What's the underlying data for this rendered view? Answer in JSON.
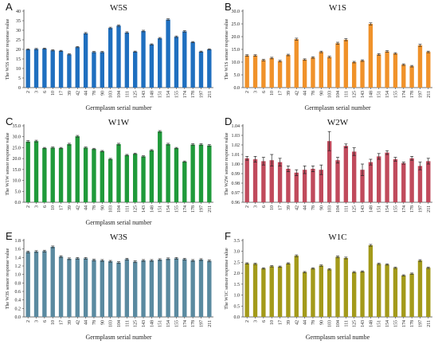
{
  "figure": {
    "categories": [
      "2",
      "3",
      "6",
      "10",
      "17",
      "39",
      "42",
      "44",
      "78",
      "90",
      "103",
      "104",
      "111",
      "125",
      "143",
      "148",
      "151",
      "154",
      "155",
      "174",
      "178",
      "197",
      "211"
    ]
  },
  "chart_data": [
    {
      "type": "bar",
      "panel_letter": "A",
      "title": "W5S",
      "ylabel": "The W5S sensor response value",
      "xlabel": "Germplasm serial number",
      "ylim": [
        0,
        40
      ],
      "yticks": [
        "0",
        "5",
        "10",
        "15",
        "20",
        "25",
        "30",
        "35",
        "40"
      ],
      "yticks_values": [
        0,
        5,
        10,
        15,
        20,
        25,
        30,
        35,
        40
      ],
      "categories": [
        "2",
        "3",
        "6",
        "10",
        "17",
        "39",
        "42",
        "44",
        "78",
        "90",
        "103",
        "104",
        "111",
        "125",
        "143",
        "148",
        "151",
        "154",
        "155",
        "174",
        "178",
        "197",
        "211"
      ],
      "values": [
        20.0,
        20.2,
        20.4,
        19.5,
        19.2,
        17.4,
        21.2,
        28.4,
        18.6,
        18.6,
        31.2,
        32.4,
        28.8,
        18.8,
        29.6,
        22.6,
        25.8,
        35.6,
        26.6,
        29.4,
        23.8,
        18.8,
        20.0
      ],
      "errors": [
        0.3,
        0.3,
        0.3,
        0.3,
        0.3,
        0.3,
        0.3,
        0.4,
        0.3,
        0.3,
        0.4,
        0.4,
        0.4,
        0.3,
        0.4,
        0.3,
        0.4,
        0.4,
        0.4,
        0.4,
        0.3,
        0.3,
        0.3
      ],
      "color": "#1f6fbf",
      "grid": false
    },
    {
      "type": "bar",
      "panel_letter": "B",
      "title": "W1S",
      "ylabel": "The W1S sensor response value",
      "xlabel": "Germplasm serial number",
      "ylim": [
        0,
        30
      ],
      "yticks": [
        "0.0",
        "5.0",
        "10.0",
        "15.0",
        "20.0",
        "25.0",
        "30.0"
      ],
      "yticks_values": [
        0,
        5,
        10,
        15,
        20,
        25,
        30
      ],
      "categories": [
        "2",
        "3",
        "6",
        "10",
        "17",
        "39",
        "42",
        "44",
        "78",
        "90",
        "103",
        "104",
        "111",
        "125",
        "143",
        "148",
        "151",
        "154",
        "155",
        "174",
        "178",
        "197",
        "211"
      ],
      "values": [
        12.6,
        12.6,
        10.8,
        11.6,
        10.4,
        12.8,
        19.0,
        11.0,
        11.8,
        14.0,
        12.0,
        17.4,
        18.8,
        10.0,
        10.6,
        25.0,
        13.0,
        14.2,
        13.4,
        9.0,
        8.4,
        16.6,
        14.0
      ],
      "errors": [
        0.3,
        0.3,
        0.3,
        0.3,
        0.3,
        0.3,
        0.4,
        0.3,
        0.3,
        0.3,
        0.3,
        0.4,
        0.4,
        0.3,
        0.3,
        0.4,
        0.3,
        0.3,
        0.3,
        0.3,
        0.3,
        0.4,
        0.3
      ],
      "color": "#f0922a",
      "grid": false
    },
    {
      "type": "bar",
      "panel_letter": "C",
      "title": "W1W",
      "ylabel": "The W1W sensor response value",
      "xlabel": "Germplasm serial number",
      "ylim": [
        0,
        35
      ],
      "yticks": [
        "0.0",
        "5.0",
        "10.0",
        "15.0",
        "20.0",
        "25.0",
        "30.0",
        "35.0"
      ],
      "yticks_values": [
        0,
        5,
        10,
        15,
        20,
        25,
        30,
        35
      ],
      "categories": [
        "2",
        "3",
        "6",
        "10",
        "17",
        "39",
        "42",
        "44",
        "78",
        "90",
        "103",
        "104",
        "111",
        "125",
        "143",
        "148",
        "151",
        "154",
        "155",
        "174",
        "178",
        "197",
        "211"
      ],
      "values": [
        27.8,
        28.0,
        24.8,
        25.0,
        24.8,
        26.6,
        30.2,
        25.0,
        24.4,
        23.4,
        19.8,
        26.6,
        21.6,
        22.2,
        21.0,
        23.8,
        32.4,
        26.6,
        24.8,
        18.6,
        26.4,
        26.4,
        26.0
      ],
      "errors": [
        0.4,
        0.4,
        0.3,
        0.3,
        0.3,
        0.4,
        0.4,
        0.3,
        0.3,
        0.3,
        0.3,
        0.4,
        0.3,
        0.3,
        0.3,
        0.3,
        0.4,
        0.4,
        0.3,
        0.3,
        0.4,
        0.4,
        0.4
      ],
      "color": "#1f9a3a",
      "grid": false
    },
    {
      "type": "bar",
      "panel_letter": "D",
      "title": "W2W",
      "ylabel": "The W2W sensor response value",
      "xlabel": "",
      "ylim": [
        0.96,
        1.04
      ],
      "yticks": [
        "0.96",
        "0.97",
        "0.98",
        "0.99",
        "1.00",
        "1.01",
        "1.02",
        "1.03",
        "1.04"
      ],
      "yticks_values": [
        0.96,
        0.97,
        0.98,
        0.99,
        1.0,
        1.01,
        1.02,
        1.03,
        1.04
      ],
      "categories": [
        "2",
        "3",
        "6",
        "10",
        "17",
        "39",
        "42",
        "44",
        "78",
        "90",
        "103",
        "104",
        "111",
        "125",
        "143",
        "148",
        "151",
        "154",
        "155",
        "174",
        "178",
        "197",
        "211"
      ],
      "values": [
        1.006,
        1.005,
        1.003,
        1.004,
        1.002,
        0.995,
        0.991,
        0.994,
        0.995,
        0.994,
        1.024,
        1.004,
        1.019,
        1.013,
        0.994,
        1.002,
        1.008,
        1.012,
        1.005,
        1.001,
        1.006,
        0.998,
        1.003
      ],
      "errors": [
        0.002,
        0.003,
        0.004,
        0.006,
        0.004,
        0.003,
        0.003,
        0.004,
        0.003,
        0.005,
        0.01,
        0.003,
        0.002,
        0.004,
        0.006,
        0.003,
        0.003,
        0.002,
        0.002,
        0.001,
        0.002,
        0.004,
        0.003
      ],
      "color": "#c04a5c",
      "error_color": "#222222",
      "grid": false
    },
    {
      "type": "bar",
      "panel_letter": "E",
      "title": "W3S",
      "ylabel": "The W3S sensor response value",
      "xlabel": "Germplasm serial number",
      "ylim": [
        0,
        1.8
      ],
      "yticks": [
        "0.0",
        "0.2",
        "0.4",
        "0.6",
        "0.8",
        "1.0",
        "1.2",
        "1.4",
        "1.6",
        "1.8"
      ],
      "yticks_values": [
        0,
        0.2,
        0.4,
        0.6,
        0.8,
        1.0,
        1.2,
        1.4,
        1.6,
        1.8
      ],
      "categories": [
        "2",
        "3",
        "6",
        "10",
        "17",
        "39",
        "42",
        "44",
        "78",
        "90",
        "103",
        "104",
        "111",
        "125",
        "143",
        "148",
        "151",
        "154",
        "155",
        "174",
        "178",
        "197",
        "211"
      ],
      "values": [
        1.53,
        1.54,
        1.55,
        1.65,
        1.42,
        1.37,
        1.38,
        1.38,
        1.34,
        1.33,
        1.31,
        1.28,
        1.36,
        1.3,
        1.33,
        1.33,
        1.35,
        1.37,
        1.38,
        1.36,
        1.33,
        1.35,
        1.32
      ],
      "errors": [
        0.02,
        0.02,
        0.02,
        0.02,
        0.02,
        0.02,
        0.02,
        0.02,
        0.02,
        0.02,
        0.02,
        0.02,
        0.02,
        0.02,
        0.02,
        0.02,
        0.02,
        0.02,
        0.02,
        0.02,
        0.02,
        0.02,
        0.02
      ],
      "color": "#5a8aa0",
      "grid": false
    },
    {
      "type": "bar",
      "panel_letter": "F",
      "title": "W1C",
      "ylabel": "The W1C sensor response value",
      "xlabel": "Germplasm serial numbe",
      "ylim": [
        0,
        3.5
      ],
      "yticks": [
        "0.0",
        "0.5",
        "1.0",
        "1.5",
        "2.0",
        "2.5",
        "3.0",
        "3.5"
      ],
      "yticks_values": [
        0,
        0.5,
        1.0,
        1.5,
        2.0,
        2.5,
        3.0,
        3.5
      ],
      "categories": [
        "2",
        "3",
        "6",
        "10",
        "17",
        "39",
        "42",
        "44",
        "78",
        "90",
        "103",
        "104",
        "111",
        "125",
        "143",
        "148",
        "151",
        "154",
        "155",
        "174",
        "178",
        "197",
        "211"
      ],
      "values": [
        2.45,
        2.43,
        2.22,
        2.32,
        2.3,
        2.45,
        2.8,
        2.05,
        2.22,
        2.35,
        2.18,
        2.75,
        2.7,
        2.05,
        2.08,
        3.28,
        2.43,
        2.4,
        2.25,
        1.9,
        1.98,
        2.58,
        2.25
      ],
      "errors": [
        0.03,
        0.03,
        0.03,
        0.03,
        0.03,
        0.03,
        0.04,
        0.03,
        0.03,
        0.03,
        0.03,
        0.04,
        0.04,
        0.03,
        0.03,
        0.04,
        0.03,
        0.03,
        0.03,
        0.03,
        0.03,
        0.04,
        0.03
      ],
      "color": "#a39a1a",
      "grid": false
    }
  ]
}
